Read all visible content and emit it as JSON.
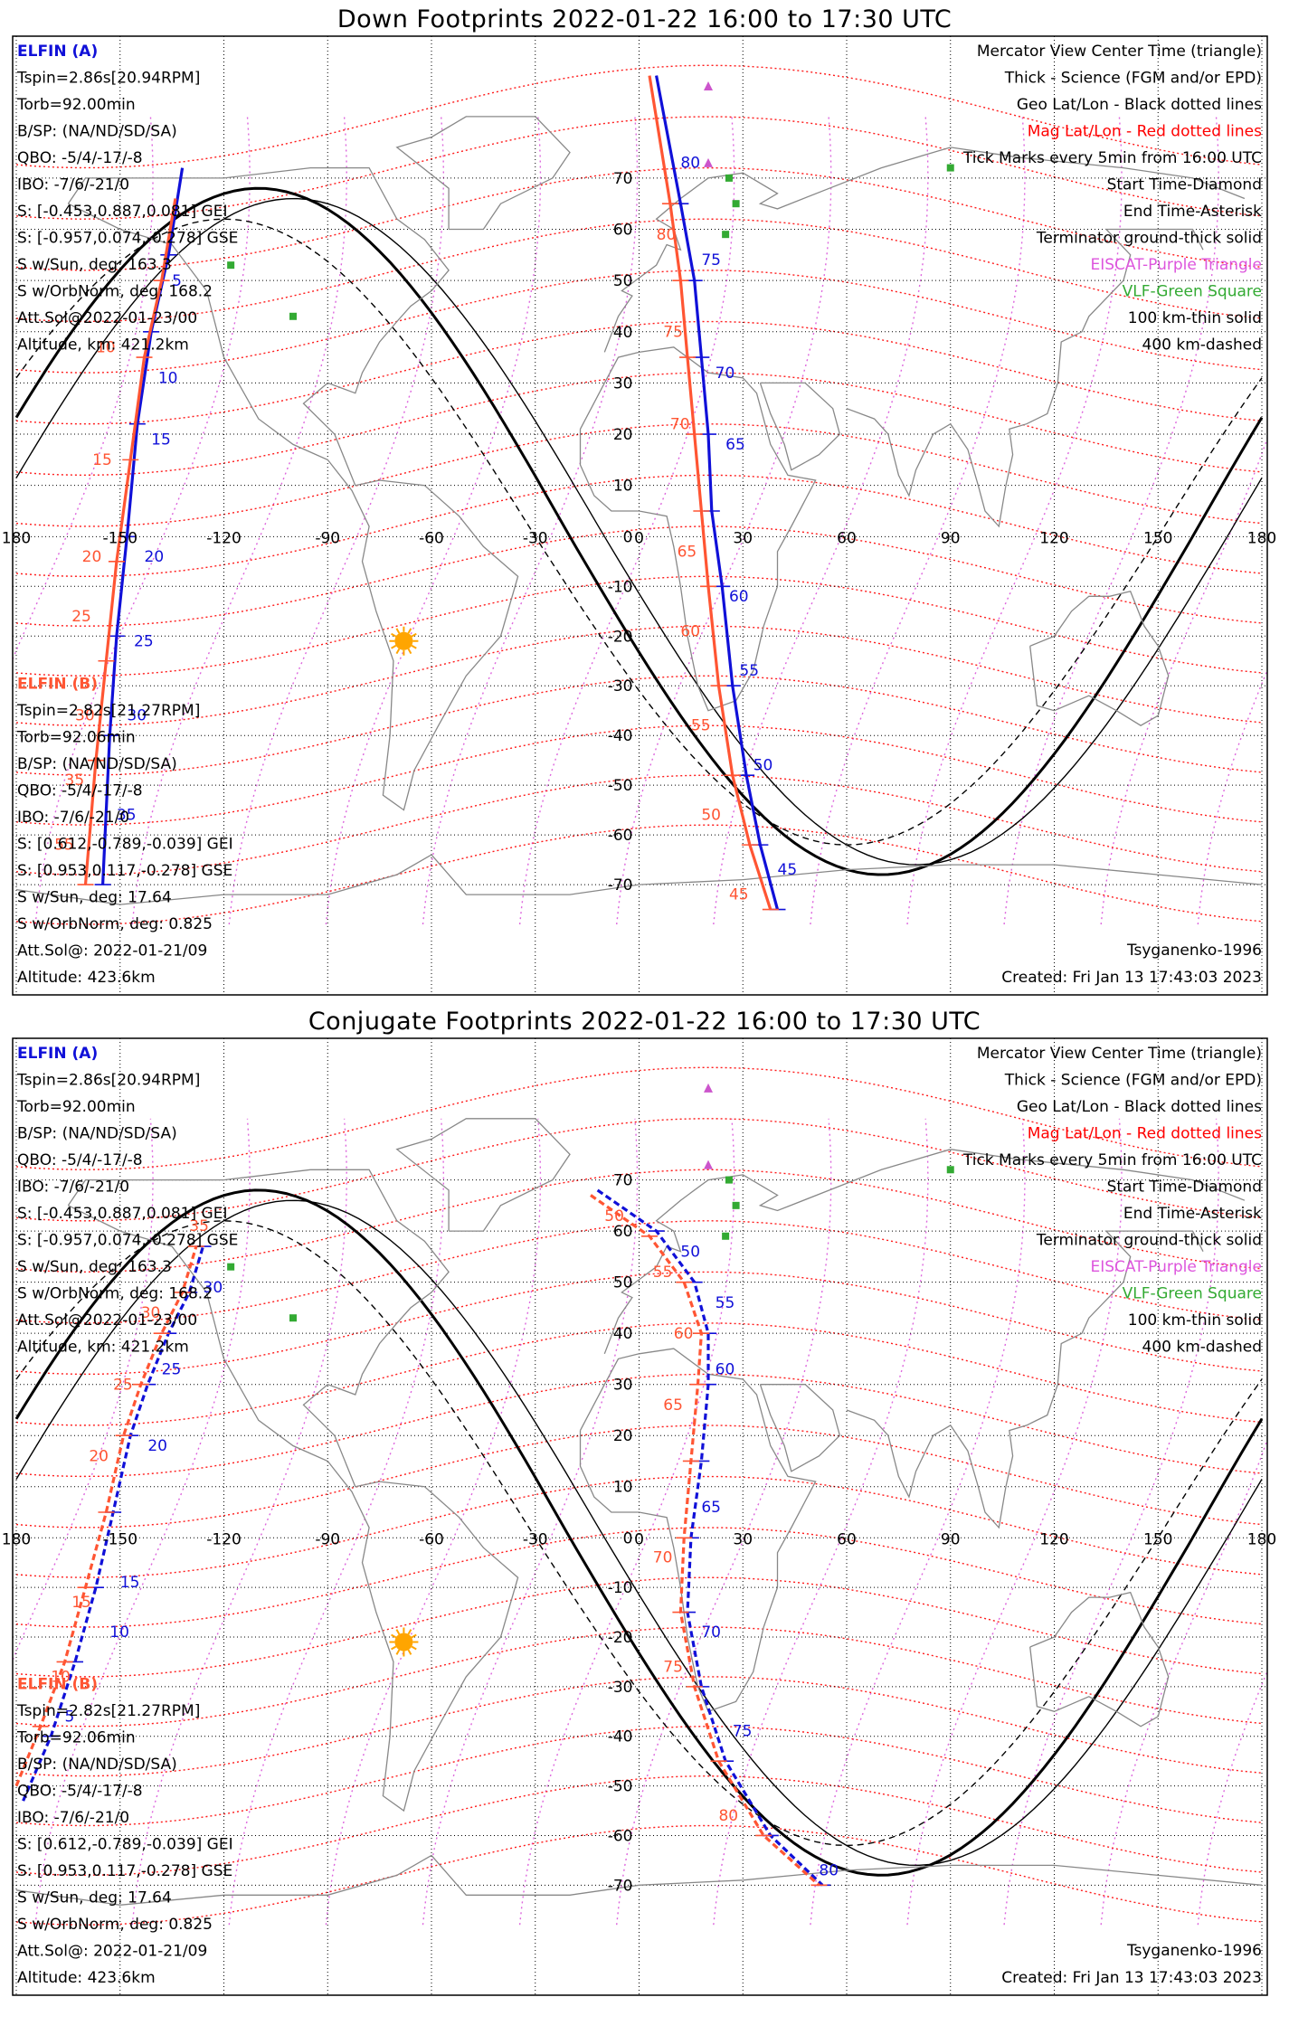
{
  "panels": [
    {
      "title": "Down Footprints 2022-01-22 16:00 to 17:30 UTC",
      "ylabels": [
        70,
        60,
        50,
        40,
        30,
        20,
        10,
        0,
        -10,
        -20,
        -30,
        -40,
        -50,
        -60,
        -70
      ],
      "xlabels": [
        -180,
        -150,
        -120,
        -90,
        -60,
        -30,
        0,
        30,
        60,
        90,
        120,
        150,
        180
      ],
      "xlabel_text": [
        "180",
        "-150",
        "-120",
        "-90",
        "-60",
        "-30",
        "0",
        "30",
        "60",
        "90",
        "120",
        "150",
        "180"
      ],
      "sun": {
        "lon": -68,
        "lat": -21
      },
      "tracks": [
        {
          "name": "ELFIN (A)",
          "color": "#1010d8",
          "style": "solid",
          "points": [
            [
              -132,
              72
            ],
            [
              -136,
              55
            ],
            [
              -141,
              40
            ],
            [
              -145,
              22
            ],
            [
              -148,
              0
            ],
            [
              -151,
              -20
            ],
            [
              -153,
              -40
            ],
            [
              -155,
              -70
            ]
          ],
          "labels": [
            {
              "t": "5",
              "lon": -135,
              "lat": 49
            },
            {
              "t": "10",
              "lon": -139,
              "lat": 30
            },
            {
              "t": "15",
              "lon": -141,
              "lat": 18
            },
            {
              "t": "20",
              "lon": -143,
              "lat": -5
            },
            {
              "t": "25",
              "lon": -146,
              "lat": -22
            },
            {
              "t": "30",
              "lon": -148,
              "lat": -37
            },
            {
              "t": "35",
              "lon": -151,
              "lat": -57
            }
          ]
        },
        {
          "name": "ELFIN (B)",
          "color": "#ff5533",
          "style": "solid",
          "points": [
            [
              -134,
              66
            ],
            [
              -138,
              50
            ],
            [
              -143,
              35
            ],
            [
              -147,
              15
            ],
            [
              -151,
              -5
            ],
            [
              -154,
              -25
            ],
            [
              -157,
              -45
            ],
            [
              -160,
              -70
            ]
          ],
          "labels": [
            {
              "t": "10",
              "lon": -157,
              "lat": 36
            },
            {
              "t": "15",
              "lon": -158,
              "lat": 14
            },
            {
              "t": "20",
              "lon": -161,
              "lat": -5
            },
            {
              "t": "25",
              "lon": -164,
              "lat": -17
            },
            {
              "t": "30",
              "lon": -163,
              "lat": -37
            },
            {
              "t": "35",
              "lon": -166,
              "lat": -50
            },
            {
              "t": "55",
              "lon": -169,
              "lat": -63
            }
          ]
        },
        {
          "name": "ELFIN (A) east",
          "color": "#1010d8",
          "style": "solid",
          "points": [
            [
              5,
              90
            ],
            [
              12,
              65
            ],
            [
              16,
              50
            ],
            [
              18,
              35
            ],
            [
              20,
              20
            ],
            [
              21,
              5
            ],
            [
              24,
              -10
            ],
            [
              27,
              -30
            ],
            [
              31,
              -48
            ],
            [
              35,
              -62
            ],
            [
              40,
              -75
            ]
          ],
          "labels": [
            {
              "t": "80",
              "lon": 12,
              "lat": 72
            },
            {
              "t": "75",
              "lon": 18,
              "lat": 53
            },
            {
              "t": "70",
              "lon": 22,
              "lat": 31
            },
            {
              "t": "65",
              "lon": 25,
              "lat": 17
            },
            {
              "t": "60",
              "lon": 26,
              "lat": -13
            },
            {
              "t": "55",
              "lon": 29,
              "lat": -28
            },
            {
              "t": "50",
              "lon": 33,
              "lat": -47
            },
            {
              "t": "45",
              "lon": 40,
              "lat": -68
            }
          ]
        },
        {
          "name": "ELFIN (B) east",
          "color": "#ff5533",
          "style": "solid",
          "points": [
            [
              3,
              90
            ],
            [
              9,
              65
            ],
            [
              12,
              50
            ],
            [
              14,
              35
            ],
            [
              16,
              20
            ],
            [
              18,
              5
            ],
            [
              20,
              -10
            ],
            [
              23,
              -30
            ],
            [
              27,
              -48
            ],
            [
              32,
              -62
            ],
            [
              38,
              -75
            ]
          ],
          "labels": [
            {
              "t": "80",
              "lon": 5,
              "lat": 58
            },
            {
              "t": "75",
              "lon": 7,
              "lat": 39
            },
            {
              "t": "70",
              "lon": 9,
              "lat": 21
            },
            {
              "t": "65",
              "lon": 11,
              "lat": -4
            },
            {
              "t": "60",
              "lon": 12,
              "lat": -20
            },
            {
              "t": "55",
              "lon": 15,
              "lat": -39
            },
            {
              "t": "50",
              "lon": 18,
              "lat": -57
            },
            {
              "t": "45",
              "lon": 26,
              "lat": -73
            }
          ]
        }
      ],
      "left_top": [
        "ELFIN (A)",
        "Tspin=2.86s[20.94RPM]",
        "Torb=92.00min",
        "B/SP: (NA/ND/SD/SA)",
        "QBO: -5/4/-17/-8",
        "IBO: -7/6/-21/0",
        "S: [-0.453,0.887,0.081] GEI",
        "S: [-0.957,0.074,-0.278] GSE",
        "S w/Sun, deg: 163.3",
        "S w/OrbNorm, deg: 168.2",
        "Att.Sol@2022-01-23/00",
        "Altitude, km: 421.2km"
      ],
      "left_bottom": [
        "ELFIN (B)",
        "Tspin=2.82s[21.27RPM]",
        "Torb=92.06min",
        "B/SP: (NA/ND/SD/SA)",
        "QBO: -5/4/-17/-8",
        "IBO: -7/6/-21/0",
        "S: [0.612,-0.789,-0.039] GEI",
        "S: [0.953,0.117,-0.278] GSE",
        "S w/Sun, deg: 17.64",
        "S w/OrbNorm, deg: 0.825",
        "Att.Sol@: 2022-01-21/09",
        "Altitude: 423.6km"
      ],
      "right": [
        {
          "t": "Mercator View Center Time (triangle)",
          "c": "#000000"
        },
        {
          "t": "Thick - Science (FGM and/or EPD)",
          "c": "#000000"
        },
        {
          "t": "Geo Lat/Lon - Black dotted lines",
          "c": "#000000"
        },
        {
          "t": "Mag Lat/Lon - Red dotted lines",
          "c": "#ff0000"
        },
        {
          "t": "Tick Marks every 5min from 16:00 UTC",
          "c": "#000000"
        },
        {
          "t": "Start Time-Diamond",
          "c": "#000000"
        },
        {
          "t": "End Time-Asterisk",
          "c": "#000000"
        },
        {
          "t": "Terminator ground-thick solid",
          "c": "#000000"
        },
        {
          "t": "EISCAT-Purple Triangle",
          "c": "#dd55dd"
        },
        {
          "t": "VLF-Green Square",
          "c": "#33aa33"
        },
        {
          "t": "100 km-thin solid",
          "c": "#000000"
        },
        {
          "t": "400 km-dashed",
          "c": "#000000"
        }
      ],
      "model": "Tsyganenko-1996",
      "created": "Created: Fri Jan 13 17:43:03 2023"
    },
    {
      "title": "Conjugate Footprints 2022-01-22 16:00 to 17:30 UTC",
      "ylabels": [
        70,
        60,
        50,
        40,
        30,
        20,
        10,
        0,
        -10,
        -20,
        -30,
        -40,
        -50,
        -60,
        -70
      ],
      "xlabels": [
        -180,
        -150,
        -120,
        -90,
        -60,
        -30,
        0,
        30,
        60,
        90,
        120,
        150,
        180
      ],
      "xlabel_text": [
        "180",
        "-150",
        "-120",
        "-90",
        "-60",
        "-30",
        "0",
        "30",
        "60",
        "90",
        "120",
        "150",
        "180"
      ],
      "sun": {
        "lon": -68,
        "lat": -21
      },
      "tracks": [
        {
          "name": "ELFIN (A)",
          "color": "#1010d8",
          "style": "dashed",
          "points": [
            [
              -178,
              -53
            ],
            [
              -170,
              -40
            ],
            [
              -163,
              -25
            ],
            [
              -157,
              -10
            ],
            [
              -152,
              5
            ],
            [
              -147,
              20
            ],
            [
              -142,
              30
            ],
            [
              -136,
              40
            ],
            [
              -130,
              48
            ],
            [
              -126,
              57
            ]
          ],
          "labels": [
            {
              "t": "5",
              "lon": -166,
              "lat": -37
            },
            {
              "t": "10",
              "lon": -153,
              "lat": -20
            },
            {
              "t": "15",
              "lon": -150,
              "lat": -10
            },
            {
              "t": "20",
              "lon": -142,
              "lat": 17
            },
            {
              "t": "25",
              "lon": -138,
              "lat": 32
            },
            {
              "t": "30",
              "lon": -126,
              "lat": 48
            }
          ]
        },
        {
          "name": "ELFIN (B)",
          "color": "#ff5533",
          "style": "dashed",
          "points": [
            [
              -180,
              -50
            ],
            [
              -173,
              -38
            ],
            [
              -166,
              -25
            ],
            [
              -160,
              -10
            ],
            [
              -154,
              5
            ],
            [
              -149,
              20
            ],
            [
              -144,
              30
            ],
            [
              -138,
              40
            ],
            [
              -132,
              48
            ],
            [
              -128,
              57
            ]
          ],
          "labels": [
            {
              "t": "10",
              "lon": -170,
              "lat": -29
            },
            {
              "t": "15",
              "lon": -164,
              "lat": -14
            },
            {
              "t": "20",
              "lon": -159,
              "lat": 15
            },
            {
              "t": "25",
              "lon": -152,
              "lat": 29
            },
            {
              "t": "30",
              "lon": -144,
              "lat": 43
            },
            {
              "t": "35",
              "lon": -130,
              "lat": 60
            }
          ]
        },
        {
          "name": "ELFIN (A) east",
          "color": "#1010d8",
          "style": "dashed",
          "points": [
            [
              -12,
              68
            ],
            [
              5,
              60
            ],
            [
              16,
              50
            ],
            [
              20,
              40
            ],
            [
              20,
              30
            ],
            [
              18,
              15
            ],
            [
              15,
              0
            ],
            [
              14,
              -15
            ],
            [
              18,
              -30
            ],
            [
              25,
              -45
            ],
            [
              38,
              -60
            ],
            [
              53,
              -70
            ]
          ],
          "labels": [
            {
              "t": "50",
              "lon": 12,
              "lat": 55
            },
            {
              "t": "55",
              "lon": 22,
              "lat": 45
            },
            {
              "t": "60",
              "lon": 22,
              "lat": 32
            },
            {
              "t": "65",
              "lon": 18,
              "lat": 5
            },
            {
              "t": "70",
              "lon": 18,
              "lat": -20
            },
            {
              "t": "75",
              "lon": 27,
              "lat": -40
            },
            {
              "t": "80",
              "lon": 52,
              "lat": -68
            }
          ]
        },
        {
          "name": "ELFIN (B) east",
          "color": "#ff5533",
          "style": "dashed",
          "points": [
            [
              -14,
              67
            ],
            [
              3,
              59
            ],
            [
              13,
              50
            ],
            [
              18,
              40
            ],
            [
              17,
              30
            ],
            [
              15,
              15
            ],
            [
              13,
              0
            ],
            [
              12,
              -15
            ],
            [
              16,
              -30
            ],
            [
              23,
              -45
            ],
            [
              36,
              -60
            ],
            [
              52,
              -70
            ]
          ],
          "labels": [
            {
              "t": "50",
              "lon": -10,
              "lat": 62
            },
            {
              "t": "55",
              "lon": 4,
              "lat": 51
            },
            {
              "t": "60",
              "lon": 10,
              "lat": 39
            },
            {
              "t": "65",
              "lon": 7,
              "lat": 25
            },
            {
              "t": "70",
              "lon": 4,
              "lat": -5
            },
            {
              "t": "75",
              "lon": 7,
              "lat": -27
            },
            {
              "t": "80",
              "lon": 23,
              "lat": -57
            }
          ]
        }
      ],
      "left_top": [
        "ELFIN (A)",
        "Tspin=2.86s[20.94RPM]",
        "Torb=92.00min",
        "B/SP: (NA/ND/SD/SA)",
        "QBO: -5/4/-17/-8",
        "IBO: -7/6/-21/0",
        "S: [-0.453,0.887,0.081] GEI",
        "S: [-0.957,0.074,-0.278] GSE",
        "S w/Sun, deg: 163.3",
        "S w/OrbNorm, deg: 168.2",
        "Att.Sol@2022-01-23/00",
        "Altitude, km: 421.2km"
      ],
      "left_bottom": [
        "ELFIN (B)",
        "Tspin=2.82s[21.27RPM]",
        "Torb=92.06min",
        "B/SP: (NA/ND/SD/SA)",
        "QBO: -5/4/-17/-8",
        "IBO: -7/6/-21/0",
        "S: [0.612,-0.789,-0.039] GEI",
        "S: [0.953,0.117,-0.278] GSE",
        "S w/Sun, deg: 17.64",
        "S w/OrbNorm, deg: 0.825",
        "Att.Sol@: 2022-01-21/09",
        "Altitude: 423.6km"
      ],
      "right": [
        {
          "t": "Mercator View Center Time (triangle)",
          "c": "#000000"
        },
        {
          "t": "Thick - Science (FGM and/or EPD)",
          "c": "#000000"
        },
        {
          "t": "Geo Lat/Lon - Black dotted lines",
          "c": "#000000"
        },
        {
          "t": "Mag Lat/Lon - Red dotted lines",
          "c": "#ff0000"
        },
        {
          "t": "Tick Marks every 5min from 16:00 UTC",
          "c": "#000000"
        },
        {
          "t": "Start Time-Diamond",
          "c": "#000000"
        },
        {
          "t": "End Time-Asterisk",
          "c": "#000000"
        },
        {
          "t": "Terminator ground-thick solid",
          "c": "#000000"
        },
        {
          "t": "EISCAT-Purple Triangle",
          "c": "#dd55dd"
        },
        {
          "t": "VLF-Green Square",
          "c": "#33aa33"
        },
        {
          "t": "100 km-thin solid",
          "c": "#000000"
        },
        {
          "t": "400 km-dashed",
          "c": "#000000"
        }
      ],
      "model": "Tsyganenko-1996",
      "created": "Created: Fri Jan 13 17:43:03 2023"
    }
  ],
  "chart_data": [
    {
      "type": "scatter",
      "title": "Down Footprints 2022-01-22 16:00 to 17:30 UTC",
      "xlim": [
        -180,
        180
      ],
      "ylim": [
        -78,
        80
      ],
      "grid": true,
      "series": [
        {
          "name": "ELFIN (A)"
        },
        {
          "name": "ELFIN (B)"
        }
      ]
    },
    {
      "type": "scatter",
      "title": "Conjugate Footprints 2022-01-22 16:00 to 17:30 UTC",
      "xlim": [
        -180,
        180
      ],
      "ylim": [
        -78,
        80
      ],
      "grid": true,
      "series": [
        {
          "name": "ELFIN (A)"
        },
        {
          "name": "ELFIN (B)"
        }
      ]
    }
  ]
}
